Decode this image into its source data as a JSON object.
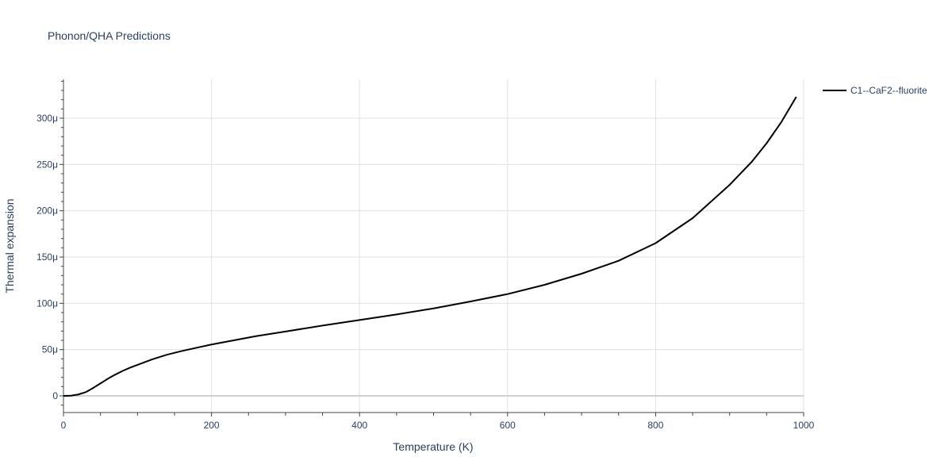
{
  "chart_data": {
    "type": "line",
    "title": "Phonon/QHA Predictions",
    "xlabel": "Temperature (K)",
    "ylabel": "Thermal expansion",
    "xlim": [
      0,
      1000
    ],
    "ylim": [
      -1.8e-05,
      0.000342
    ],
    "grid": true,
    "legend_position": "top-right",
    "x_ticks": [
      0,
      200,
      400,
      600,
      800,
      1000
    ],
    "x_tick_labels": [
      "0",
      "200",
      "400",
      "600",
      "800",
      "1000"
    ],
    "y_ticks": [
      0,
      5e-05,
      0.0001,
      0.00015,
      0.0002,
      0.00025,
      0.0003
    ],
    "y_tick_labels": [
      "0",
      "50μ",
      "100μ",
      "150μ",
      "200μ",
      "250μ",
      "300μ"
    ],
    "series": [
      {
        "name": "C1--CaF2--fluorite",
        "color": "#000000",
        "x": [
          0,
          10,
          20,
          30,
          40,
          50,
          60,
          70,
          80,
          90,
          100,
          120,
          140,
          160,
          180,
          200,
          230,
          260,
          300,
          350,
          400,
          450,
          500,
          550,
          600,
          650,
          700,
          750,
          800,
          850,
          900,
          930,
          950,
          970,
          990
        ],
        "y": [
          0,
          2e-07,
          1.5e-06,
          4e-06,
          8.5e-06,
          1.35e-05,
          1.85e-05,
          2.3e-05,
          2.7e-05,
          3.05e-05,
          3.35e-05,
          3.95e-05,
          4.45e-05,
          4.85e-05,
          5.2e-05,
          5.55e-05,
          6e-05,
          6.45e-05,
          6.95e-05,
          7.6e-05,
          8.2e-05,
          8.8e-05,
          9.45e-05,
          0.000102,
          0.00011,
          0.00012,
          0.000132,
          0.000146,
          0.000165,
          0.000192,
          0.000228,
          0.000253,
          0.000273,
          0.000296,
          0.000323
        ]
      }
    ]
  }
}
